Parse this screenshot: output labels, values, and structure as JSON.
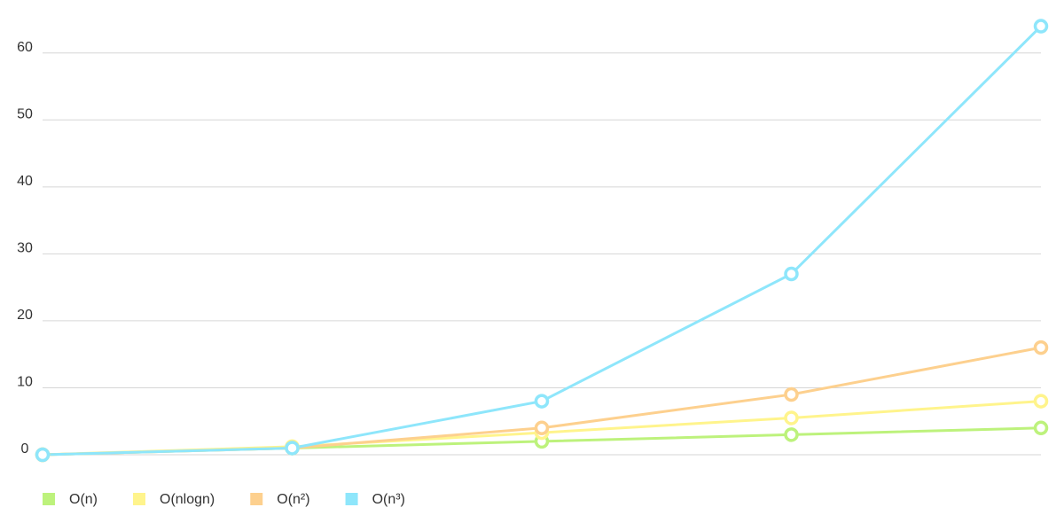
{
  "chart_data": {
    "type": "line",
    "categories": [
      null,
      null,
      null,
      null,
      null
    ],
    "series": [
      {
        "name": "O(n)",
        "color": "#bdf27c",
        "values": [
          0,
          1,
          2,
          3,
          4
        ]
      },
      {
        "name": "O(nlogn)",
        "color": "#fff48c",
        "values": [
          0,
          1.2,
          3.3,
          5.5,
          8
        ]
      },
      {
        "name": "O(n²)",
        "color": "#fdd08e",
        "values": [
          0,
          1,
          4,
          9,
          16
        ]
      },
      {
        "name": "O(n³)",
        "color": "#8ee6fb",
        "values": [
          0,
          1,
          8,
          27,
          64
        ]
      }
    ],
    "ylim": [
      0,
      65
    ],
    "yticks": [
      0,
      10,
      20,
      30,
      40,
      50,
      60
    ],
    "grid": true,
    "legend": "bottom-left"
  }
}
